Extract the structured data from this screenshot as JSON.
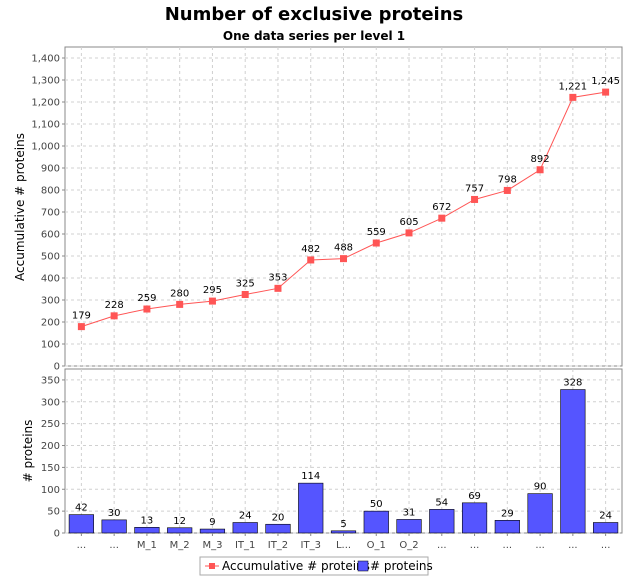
{
  "chart_data": {
    "type": "combined",
    "title": "Number of exclusive proteins",
    "subtitle": "One data series per level 1",
    "categories": [
      "...",
      "...",
      "M_1",
      "M_2",
      "M_3",
      "IT_1",
      "IT_2",
      "IT_3",
      "L...",
      "O_1",
      "O_2",
      "...",
      "...",
      "...",
      "...",
      "...",
      "..."
    ],
    "top": {
      "type": "line",
      "ylabel": "Accumulative # proteins",
      "ylim": [
        0,
        1450
      ],
      "yticks": [
        0,
        100,
        200,
        300,
        400,
        500,
        600,
        700,
        800,
        900,
        1000,
        1100,
        1200,
        1300,
        1400
      ],
      "ytick_labels": [
        "0",
        "100",
        "200",
        "300",
        "400",
        "500",
        "600",
        "700",
        "800",
        "900",
        "1,000",
        "1,100",
        "1,200",
        "1,300",
        "1,400"
      ],
      "series": [
        {
          "name": "Accumulative # proteins",
          "color": "#ff5555",
          "values": [
            179,
            228,
            259,
            280,
            295,
            325,
            353,
            482,
            488,
            559,
            605,
            672,
            757,
            798,
            892,
            1221,
            1245
          ],
          "labels": [
            "179",
            "228",
            "259",
            "280",
            "295",
            "325",
            "353",
            "482",
            "488",
            "559",
            "605",
            "672",
            "757",
            "798",
            "892",
            "1,221",
            "1,245"
          ]
        }
      ]
    },
    "bottom": {
      "type": "bar",
      "ylabel": "# proteins",
      "ylim": [
        0,
        375
      ],
      "yticks": [
        0,
        50,
        100,
        150,
        200,
        250,
        300,
        350
      ],
      "ytick_labels": [
        "0",
        "50",
        "100",
        "150",
        "200",
        "250",
        "300",
        "350"
      ],
      "series": [
        {
          "name": "# proteins",
          "color": "#5555ff",
          "values": [
            42,
            30,
            13,
            12,
            9,
            24,
            20,
            114,
            5,
            50,
            31,
            54,
            69,
            29,
            90,
            328,
            24
          ],
          "labels": [
            "42",
            "30",
            "13",
            "12",
            "9",
            "24",
            "20",
            "114",
            "5",
            "50",
            "31",
            "54",
            "69",
            "29",
            "90",
            "328",
            "24"
          ]
        }
      ]
    },
    "grid": true,
    "legend": {
      "position": "bottom",
      "items": [
        {
          "label": "Accumulative # proteins",
          "color": "#ff5555",
          "marker": "line-square"
        },
        {
          "label": "# proteins",
          "color": "#5555ff",
          "marker": "square"
        }
      ]
    }
  }
}
